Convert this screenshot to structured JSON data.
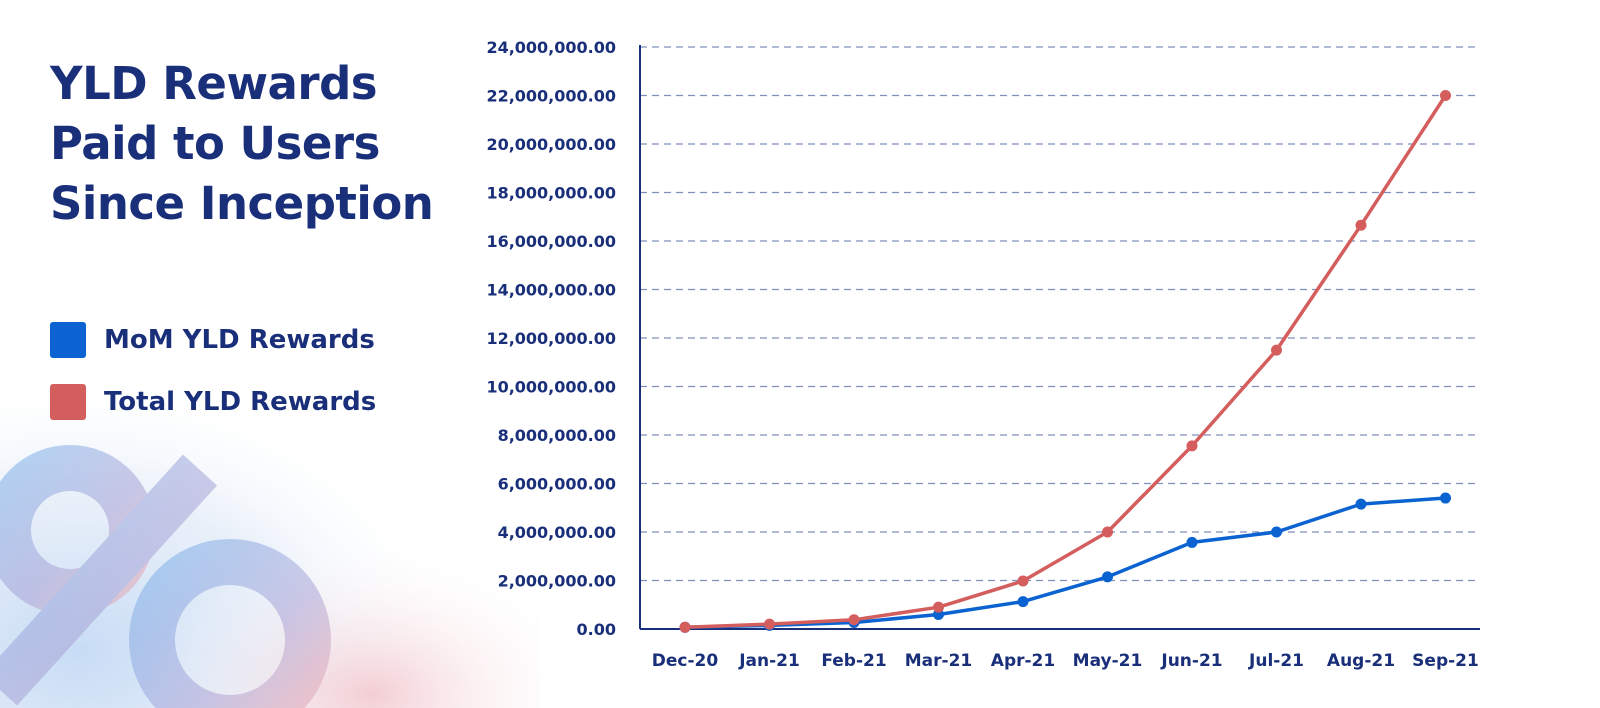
{
  "header": {
    "title": "YLD Rewards Paid to Users Since Inception"
  },
  "legend": {
    "items": [
      {
        "label": "MoM YLD Rewards",
        "color": "#0a63d1"
      },
      {
        "label": "Total YLD Rewards",
        "color": "#d45d5d"
      }
    ]
  },
  "chart_data": {
    "type": "line",
    "categories": [
      "Dec-20",
      "Jan-21",
      "Feb-21",
      "Mar-21",
      "Apr-21",
      "May-21",
      "Jun-21",
      "Jul-21",
      "Aug-21",
      "Sep-21"
    ],
    "series": [
      {
        "name": "MoM YLD Rewards",
        "color": "#0a63d1",
        "values": [
          70000,
          150000,
          270000,
          600000,
          1130000,
          2150000,
          3570000,
          4000000,
          5150000,
          5400000
        ]
      },
      {
        "name": "Total YLD Rewards",
        "color": "#d45d5d",
        "values": [
          70000,
          200000,
          380000,
          900000,
          1980000,
          4000000,
          7550000,
          11500000,
          16650000,
          22000000
        ]
      }
    ],
    "yticks": [
      "0.00",
      "2,000,000.00",
      "4,000,000.00",
      "6,000,000.00",
      "8,000,000.00",
      "10,000,000.00",
      "12,000,000.00",
      "14,000,000.00",
      "16,000,000.00",
      "18,000,000.00",
      "20,000,000.00",
      "22,000,000.00",
      "24,000,000.00"
    ],
    "ylim": [
      0,
      24000000
    ],
    "grid": "horizontal-dashed",
    "axis_color": "#1a2f7a",
    "grid_color": "#7f8fbd"
  }
}
